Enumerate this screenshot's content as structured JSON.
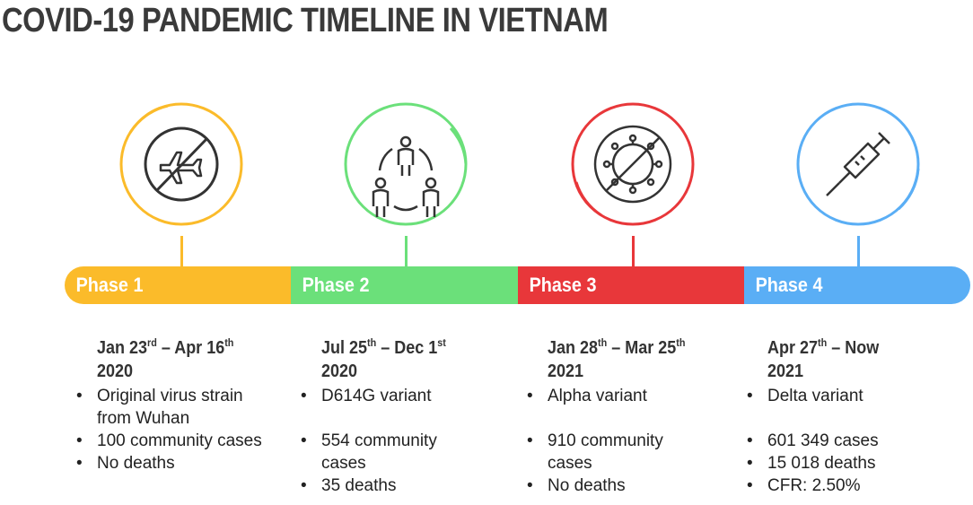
{
  "title": "COVID-19 PANDEMIC TIMELINE IN VIETNAM",
  "phases": [
    {
      "label": "Phase 1",
      "color": "#FBBB2A",
      "icon": "no-plane-icon",
      "date_start": "Jan 23",
      "date_start_sup": "rd",
      "date_sep": " – ",
      "date_end": "Apr 16",
      "date_end_sup": "th",
      "year": "2020",
      "bullets": [
        "Original virus strain from Wuhan",
        "100 community cases",
        "No deaths"
      ]
    },
    {
      "label": "Phase 2",
      "color": "#6BE07A",
      "icon": "person-to-person-transmission-icon",
      "date_start": "Jul 25",
      "date_start_sup": "th",
      "date_sep": " – ",
      "date_end": "Dec 1",
      "date_end_sup": "st",
      "year": "2020",
      "bullets": [
        "D614G variant",
        "554 community cases",
        "35 deaths"
      ]
    },
    {
      "label": "Phase 3",
      "color": "#E8373A",
      "icon": "no-virus-icon",
      "date_start": "Jan 28",
      "date_start_sup": "th",
      "date_sep": " – ",
      "date_end": "Mar 25",
      "date_end_sup": "th",
      "year": "2021",
      "bullets": [
        "Alpha variant",
        "910 community cases",
        "No deaths"
      ]
    },
    {
      "label": "Phase 4",
      "color": "#5AAEF5",
      "icon": "syringe-icon",
      "date_start": "Apr 27",
      "date_start_sup": "th",
      "date_sep": " – ",
      "date_end": "Now",
      "date_end_sup": "",
      "year": "2021",
      "bullets": [
        "Delta variant",
        "601 349 cases",
        "15 018 deaths",
        "CFR: 2.50%"
      ]
    }
  ]
}
